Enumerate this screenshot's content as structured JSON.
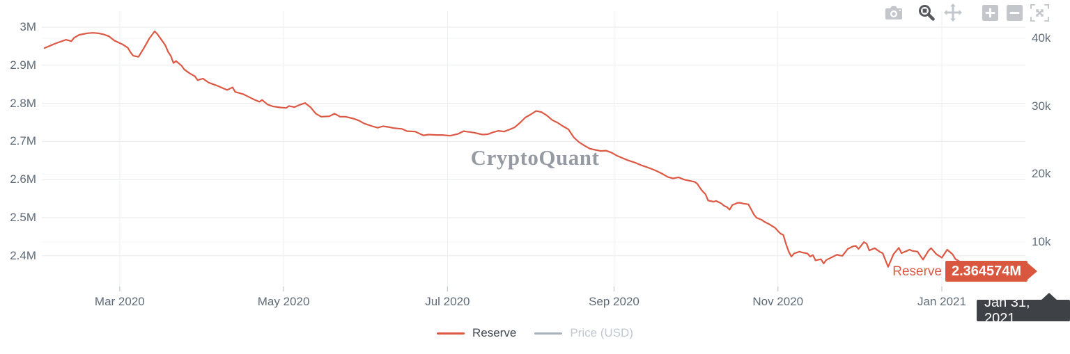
{
  "watermark": "CryptoQuant",
  "colors": {
    "accent": "#DC5843",
    "badge_bg": "#D9573F",
    "date_tooltip_bg": "#3E4246",
    "muted_series": "#A9B1BA",
    "axis_text": "#5F6B77",
    "legend_active_text": "#3F4650",
    "legend_muted_text": "#C1C8CF",
    "toolbar_inactive": "#C3C7CB",
    "toolbar_active": "#56595D"
  },
  "toolbar": {
    "buttons": [
      {
        "name": "download-snapshot",
        "icon": "camera-icon",
        "active": false
      },
      {
        "name": "zoom-mode",
        "icon": "zoom-icon",
        "active": true
      },
      {
        "name": "pan-mode",
        "icon": "pan-icon",
        "active": false
      },
      {
        "name": "zoom-in",
        "icon": "zoom-in-icon",
        "active": false
      },
      {
        "name": "zoom-out",
        "icon": "zoom-out-icon",
        "active": false
      },
      {
        "name": "autoscale",
        "icon": "autoscale-icon",
        "active": false
      }
    ]
  },
  "legend": [
    {
      "label": "Reserve",
      "color": "#DC5843",
      "text_color": "#3F4650",
      "active": true
    },
    {
      "label": "Price (USD)",
      "color": "#A9B1BA",
      "text_color": "#C1C8CF",
      "active": false
    }
  ],
  "tooltips": {
    "series_label": "Reserve",
    "value_label": "2.364574M",
    "date_label": "Jan 31, 2021"
  },
  "chart_data": {
    "type": "line",
    "title": "",
    "xlabel": "",
    "ylabel_left": "Reserve",
    "ylabel_right": "Price (USD)",
    "grid": true,
    "legend_position": "bottom-center",
    "x_axis": {
      "range": [
        "2020-02-01",
        "2021-02-01"
      ],
      "ticks": [
        {
          "label": "Mar 2020",
          "date": "2020-03-01"
        },
        {
          "label": "May 2020",
          "date": "2020-05-01"
        },
        {
          "label": "Jul 2020",
          "date": "2020-07-01"
        },
        {
          "label": "Sep 2020",
          "date": "2020-09-01"
        },
        {
          "label": "Nov 2020",
          "date": "2020-11-01"
        },
        {
          "label": "Jan 2021",
          "date": "2021-01-01"
        }
      ]
    },
    "y_axis_left": {
      "unit": "M",
      "range": [
        2.32,
        3.04
      ],
      "ticks": [
        {
          "label": "3M",
          "value": 3.0
        },
        {
          "label": "2.9M",
          "value": 2.9
        },
        {
          "label": "2.8M",
          "value": 2.8
        },
        {
          "label": "2.7M",
          "value": 2.7
        },
        {
          "label": "2.6M",
          "value": 2.6
        },
        {
          "label": "2.5M",
          "value": 2.5
        },
        {
          "label": "2.4M",
          "value": 2.4
        }
      ]
    },
    "y_axis_right": {
      "unit": "k",
      "range": [
        3500,
        44000
      ],
      "ticks": [
        {
          "label": "40k",
          "value": 40000
        },
        {
          "label": "30k",
          "value": 30000
        },
        {
          "label": "20k",
          "value": 20000
        },
        {
          "label": "10k",
          "value": 10000
        }
      ]
    },
    "last_point": {
      "date": "2021-01-31",
      "value_millions": 2.364574
    },
    "series": [
      {
        "name": "Reserve",
        "color": "#DC5843",
        "visible": true,
        "unit": "M",
        "points": [
          [
            "2020-02-02",
            2.945
          ],
          [
            "2020-02-06",
            2.957
          ],
          [
            "2020-02-10",
            2.967
          ],
          [
            "2020-02-12",
            2.963
          ],
          [
            "2020-02-13",
            2.972
          ],
          [
            "2020-02-15",
            2.98
          ],
          [
            "2020-02-18",
            2.984
          ],
          [
            "2020-02-20",
            2.985
          ],
          [
            "2020-02-22",
            2.984
          ],
          [
            "2020-02-24",
            2.981
          ],
          [
            "2020-02-26",
            2.976
          ],
          [
            "2020-02-28",
            2.965
          ],
          [
            "2020-03-02",
            2.955
          ],
          [
            "2020-03-04",
            2.946
          ],
          [
            "2020-03-05",
            2.934
          ],
          [
            "2020-03-06",
            2.925
          ],
          [
            "2020-03-08",
            2.922
          ],
          [
            "2020-03-10",
            2.945
          ],
          [
            "2020-03-12",
            2.97
          ],
          [
            "2020-03-14",
            2.989
          ],
          [
            "2020-03-15",
            2.982
          ],
          [
            "2020-03-16",
            2.972
          ],
          [
            "2020-03-18",
            2.952
          ],
          [
            "2020-03-19",
            2.935
          ],
          [
            "2020-03-20",
            2.925
          ],
          [
            "2020-03-21",
            2.906
          ],
          [
            "2020-03-22",
            2.911
          ],
          [
            "2020-03-24",
            2.899
          ],
          [
            "2020-03-25",
            2.889
          ],
          [
            "2020-03-27",
            2.879
          ],
          [
            "2020-03-29",
            2.871
          ],
          [
            "2020-03-30",
            2.861
          ],
          [
            "2020-04-01",
            2.865
          ],
          [
            "2020-04-03",
            2.855
          ],
          [
            "2020-04-04",
            2.852
          ],
          [
            "2020-04-06",
            2.847
          ],
          [
            "2020-04-08",
            2.841
          ],
          [
            "2020-04-10",
            2.835
          ],
          [
            "2020-04-12",
            2.842
          ],
          [
            "2020-04-13",
            2.83
          ],
          [
            "2020-04-16",
            2.824
          ],
          [
            "2020-04-18",
            2.817
          ],
          [
            "2020-04-20",
            2.81
          ],
          [
            "2020-04-22",
            2.804
          ],
          [
            "2020-04-23",
            2.809
          ],
          [
            "2020-04-25",
            2.797
          ],
          [
            "2020-04-27",
            2.792
          ],
          [
            "2020-04-30",
            2.789
          ],
          [
            "2020-05-02",
            2.788
          ],
          [
            "2020-05-03",
            2.793
          ],
          [
            "2020-05-05",
            2.79
          ],
          [
            "2020-05-07",
            2.796
          ],
          [
            "2020-05-09",
            2.801
          ],
          [
            "2020-05-11",
            2.79
          ],
          [
            "2020-05-13",
            2.773
          ],
          [
            "2020-05-15",
            2.765
          ],
          [
            "2020-05-18",
            2.766
          ],
          [
            "2020-05-20",
            2.773
          ],
          [
            "2020-05-22",
            2.765
          ],
          [
            "2020-05-24",
            2.765
          ],
          [
            "2020-05-27",
            2.76
          ],
          [
            "2020-05-29",
            2.755
          ],
          [
            "2020-05-31",
            2.747
          ],
          [
            "2020-06-03",
            2.74
          ],
          [
            "2020-06-05",
            2.736
          ],
          [
            "2020-06-07",
            2.74
          ],
          [
            "2020-06-09",
            2.738
          ],
          [
            "2020-06-11",
            2.735
          ],
          [
            "2020-06-14",
            2.733
          ],
          [
            "2020-06-16",
            2.727
          ],
          [
            "2020-06-19",
            2.726
          ],
          [
            "2020-06-22",
            2.716
          ],
          [
            "2020-06-24",
            2.718
          ],
          [
            "2020-06-27",
            2.717
          ],
          [
            "2020-06-29",
            2.717
          ],
          [
            "2020-07-02",
            2.715
          ],
          [
            "2020-07-05",
            2.72
          ],
          [
            "2020-07-07",
            2.727
          ],
          [
            "2020-07-09",
            2.725
          ],
          [
            "2020-07-11",
            2.723
          ],
          [
            "2020-07-14",
            2.718
          ],
          [
            "2020-07-16",
            2.719
          ],
          [
            "2020-07-18",
            2.724
          ],
          [
            "2020-07-20",
            2.728
          ],
          [
            "2020-07-22",
            2.726
          ],
          [
            "2020-07-24",
            2.731
          ],
          [
            "2020-07-26",
            2.737
          ],
          [
            "2020-07-28",
            2.749
          ],
          [
            "2020-07-30",
            2.763
          ],
          [
            "2020-08-01",
            2.771
          ],
          [
            "2020-08-03",
            2.78
          ],
          [
            "2020-08-05",
            2.777
          ],
          [
            "2020-08-07",
            2.768
          ],
          [
            "2020-08-09",
            2.756
          ],
          [
            "2020-08-11",
            2.749
          ],
          [
            "2020-08-13",
            2.74
          ],
          [
            "2020-08-15",
            2.732
          ],
          [
            "2020-08-17",
            2.711
          ],
          [
            "2020-08-19",
            2.698
          ],
          [
            "2020-08-21",
            2.689
          ],
          [
            "2020-08-23",
            2.681
          ],
          [
            "2020-08-25",
            2.678
          ],
          [
            "2020-08-27",
            2.675
          ],
          [
            "2020-08-29",
            2.676
          ],
          [
            "2020-08-31",
            2.671
          ],
          [
            "2020-09-02",
            2.663
          ],
          [
            "2020-09-04",
            2.657
          ],
          [
            "2020-09-06",
            2.651
          ],
          [
            "2020-09-09",
            2.644
          ],
          [
            "2020-09-11",
            2.638
          ],
          [
            "2020-09-13",
            2.633
          ],
          [
            "2020-09-15",
            2.628
          ],
          [
            "2020-09-17",
            2.622
          ],
          [
            "2020-09-19",
            2.615
          ],
          [
            "2020-09-21",
            2.607
          ],
          [
            "2020-09-23",
            2.603
          ],
          [
            "2020-09-25",
            2.606
          ],
          [
            "2020-09-27",
            2.6
          ],
          [
            "2020-09-29",
            2.597
          ],
          [
            "2020-10-01",
            2.594
          ],
          [
            "2020-10-02",
            2.589
          ],
          [
            "2020-10-03",
            2.578
          ],
          [
            "2020-10-04",
            2.569
          ],
          [
            "2020-10-05",
            2.562
          ],
          [
            "2020-10-06",
            2.545
          ],
          [
            "2020-10-08",
            2.542
          ],
          [
            "2020-10-09",
            2.544
          ],
          [
            "2020-10-11",
            2.537
          ],
          [
            "2020-10-12",
            2.531
          ],
          [
            "2020-10-13",
            2.528
          ],
          [
            "2020-10-14",
            2.521
          ],
          [
            "2020-10-15",
            2.533
          ],
          [
            "2020-10-17",
            2.539
          ],
          [
            "2020-10-18",
            2.539
          ],
          [
            "2020-10-19",
            2.537
          ],
          [
            "2020-10-21",
            2.535
          ],
          [
            "2020-10-22",
            2.522
          ],
          [
            "2020-10-23",
            2.509
          ],
          [
            "2020-10-24",
            2.5
          ],
          [
            "2020-10-26",
            2.494
          ],
          [
            "2020-10-27",
            2.489
          ],
          [
            "2020-10-29",
            2.482
          ],
          [
            "2020-10-31",
            2.473
          ],
          [
            "2020-11-01",
            2.465
          ],
          [
            "2020-11-02",
            2.458
          ],
          [
            "2020-11-03",
            2.455
          ],
          [
            "2020-11-04",
            2.431
          ],
          [
            "2020-11-05",
            2.411
          ],
          [
            "2020-11-06",
            2.398
          ],
          [
            "2020-11-07",
            2.406
          ],
          [
            "2020-11-09",
            2.411
          ],
          [
            "2020-11-10",
            2.409
          ],
          [
            "2020-11-12",
            2.406
          ],
          [
            "2020-11-13",
            2.398
          ],
          [
            "2020-11-14",
            2.402
          ],
          [
            "2020-11-15",
            2.388
          ],
          [
            "2020-11-17",
            2.391
          ],
          [
            "2020-11-18",
            2.38
          ],
          [
            "2020-11-19",
            2.389
          ],
          [
            "2020-11-21",
            2.396
          ],
          [
            "2020-11-23",
            2.403
          ],
          [
            "2020-11-24",
            2.401
          ],
          [
            "2020-11-25",
            2.4
          ],
          [
            "2020-11-27",
            2.418
          ],
          [
            "2020-11-29",
            2.425
          ],
          [
            "2020-11-30",
            2.426
          ],
          [
            "2020-12-01",
            2.418
          ],
          [
            "2020-12-03",
            2.436
          ],
          [
            "2020-12-04",
            2.432
          ],
          [
            "2020-12-05",
            2.414
          ],
          [
            "2020-12-07",
            2.42
          ],
          [
            "2020-12-09",
            2.41
          ],
          [
            "2020-12-10",
            2.407
          ],
          [
            "2020-12-12",
            2.371
          ],
          [
            "2020-12-14",
            2.404
          ],
          [
            "2020-12-16",
            2.421
          ],
          [
            "2020-12-17",
            2.407
          ],
          [
            "2020-12-19",
            2.413
          ],
          [
            "2020-12-20",
            2.416
          ],
          [
            "2020-12-21",
            2.413
          ],
          [
            "2020-12-23",
            2.411
          ],
          [
            "2020-12-24",
            2.4
          ],
          [
            "2020-12-25",
            2.39
          ],
          [
            "2020-12-27",
            2.413
          ],
          [
            "2020-12-28",
            2.42
          ],
          [
            "2020-12-30",
            2.404
          ],
          [
            "2021-01-01",
            2.395
          ],
          [
            "2021-01-03",
            2.416
          ],
          [
            "2021-01-05",
            2.404
          ],
          [
            "2021-01-06",
            2.392
          ],
          [
            "2021-01-08",
            2.383
          ],
          [
            "2021-01-11",
            2.378
          ],
          [
            "2021-01-14",
            2.374
          ],
          [
            "2021-01-17",
            2.371
          ],
          [
            "2021-01-20",
            2.369
          ],
          [
            "2021-01-23",
            2.368
          ],
          [
            "2021-01-26",
            2.366
          ],
          [
            "2021-01-29",
            2.365
          ],
          [
            "2021-01-31",
            2.364574
          ]
        ]
      },
      {
        "name": "Price (USD)",
        "color": "#A9B1BA",
        "visible": false,
        "unit": "USD",
        "points": []
      }
    ]
  }
}
